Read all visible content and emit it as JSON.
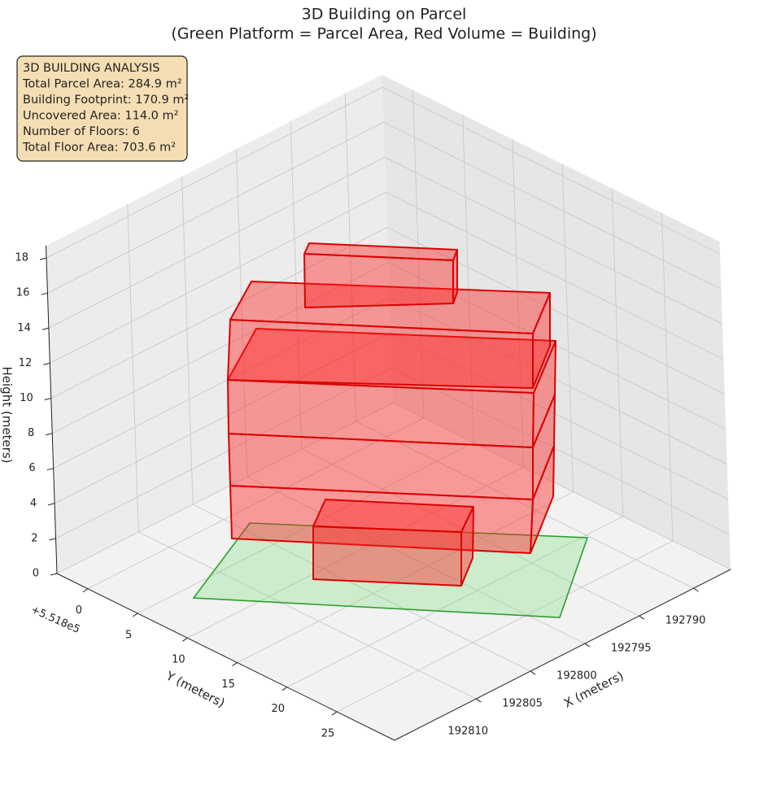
{
  "chart_data": {
    "type": "box3d",
    "title": "3D Building on Parcel",
    "subtitle": "(Green Platform = Parcel Area, Red Volume = Building)",
    "annotation": [
      "3D BUILDING ANALYSIS",
      "Total Parcel Area: 284.9 m²",
      "Building Footprint: 170.9 m²",
      "Uncovered Area: 114.0 m²",
      "Number of Floors: 6",
      "Total Floor Area: 703.6 m²"
    ],
    "xlabel": "X (meters)",
    "ylabel": "Y (meters)",
    "zlabel": "Height (meters)",
    "y_offset_label": "+5.518e5",
    "xlim": [
      192786.6,
      192817.5
    ],
    "xticks": [
      192790,
      192795,
      192800,
      192805,
      192810
    ],
    "ylim": [
      -3.1,
      30.8
    ],
    "yticks": [
      0,
      5,
      10,
      15,
      20,
      25
    ],
    "zlim": [
      0,
      18.7
    ],
    "zticks": [
      0,
      2,
      4,
      6,
      8,
      10,
      12,
      14,
      16,
      18
    ],
    "grid": true
  }
}
